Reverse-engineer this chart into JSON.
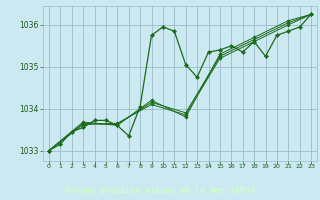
{
  "title": "Graphe pression niveau de la mer (hPa)",
  "bg_color": "#cce8f0",
  "plot_bg_color": "#cce8f0",
  "grid_color": "#99bbcc",
  "line_color": "#1a6b1a",
  "text_color": "#1a5c1a",
  "bottom_bar_color": "#2d6b2d",
  "bottom_text_color": "#ccffcc",
  "ylim": [
    1032.75,
    1036.45
  ],
  "xlim": [
    -0.5,
    23.5
  ],
  "yticks": [
    1033,
    1034,
    1035,
    1036
  ],
  "xticks": [
    0,
    1,
    2,
    3,
    4,
    5,
    6,
    7,
    8,
    9,
    10,
    11,
    12,
    13,
    14,
    15,
    16,
    17,
    18,
    19,
    20,
    21,
    22,
    23
  ],
  "series_main": {
    "x": [
      0,
      1,
      2,
      3,
      4,
      5,
      6,
      7,
      8,
      9,
      10,
      11,
      12,
      13,
      14,
      15,
      16,
      17,
      18,
      19,
      20,
      21,
      22,
      23
    ],
    "y": [
      1033.0,
      1033.15,
      1033.45,
      1033.55,
      1033.72,
      1033.72,
      1033.6,
      1033.35,
      1034.05,
      1035.75,
      1035.95,
      1035.85,
      1035.05,
      1034.75,
      1035.35,
      1035.4,
      1035.5,
      1035.35,
      1035.6,
      1035.25,
      1035.75,
      1035.85,
      1035.95,
      1036.25
    ]
  },
  "series_others": [
    {
      "x": [
        0,
        3,
        6,
        9,
        12,
        15,
        18,
        21,
        23
      ],
      "y": [
        1033.0,
        1033.62,
        1033.65,
        1034.1,
        1033.85,
        1035.2,
        1035.6,
        1036.0,
        1036.25
      ]
    },
    {
      "x": [
        0,
        3,
        6,
        9,
        12,
        15,
        18,
        21,
        23
      ],
      "y": [
        1033.0,
        1033.65,
        1033.62,
        1034.15,
        1033.9,
        1035.25,
        1035.65,
        1036.05,
        1036.25
      ]
    },
    {
      "x": [
        0,
        3,
        6,
        9,
        12,
        15,
        18,
        21,
        23
      ],
      "y": [
        1033.0,
        1033.68,
        1033.6,
        1034.2,
        1033.8,
        1035.3,
        1035.7,
        1036.1,
        1036.25
      ]
    }
  ]
}
